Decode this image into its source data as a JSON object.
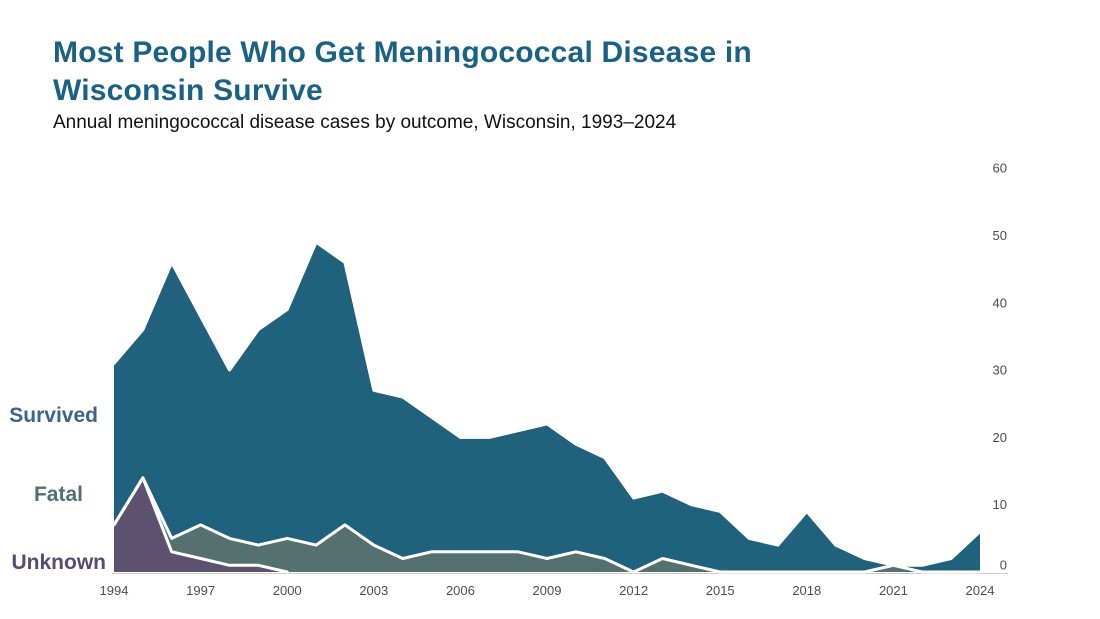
{
  "header": {
    "title": "Most People Who Get Meningococcal Disease in Wisconsin Survive",
    "subtitle": "Annual meningococcal disease cases by outcome, Wisconsin, 1993–2024",
    "title_color": "#1a6285"
  },
  "series_labels": [
    {
      "label": "Survived",
      "color": "#39648c"
    },
    {
      "label": "Fatal",
      "color": "#4e7173"
    },
    {
      "label": "Unknown",
      "color": "#5a4a72"
    }
  ],
  "chart_data": {
    "type": "area",
    "stacked": true,
    "title": "Most People Who Get Meningococcal Disease in Wisconsin Survive",
    "subtitle": "Annual meningococcal disease cases by outcome, Wisconsin, 1993–2024",
    "xlabel": "",
    "ylabel": "",
    "x": [
      1994,
      1995,
      1996,
      1997,
      1998,
      1999,
      2000,
      2001,
      2002,
      2003,
      2004,
      2005,
      2006,
      2007,
      2008,
      2009,
      2010,
      2011,
      2012,
      2013,
      2014,
      2015,
      2016,
      2017,
      2018,
      2019,
      2020,
      2021,
      2022,
      2023,
      2024
    ],
    "series": [
      {
        "name": "Unknown",
        "color": "#5d5170",
        "values": [
          7,
          14,
          3,
          2,
          1,
          1,
          0,
          0,
          0,
          0,
          0,
          0,
          0,
          0,
          0,
          0,
          0,
          0,
          0,
          0,
          0,
          0,
          0,
          0,
          0,
          0,
          0,
          0,
          0,
          0,
          0
        ]
      },
      {
        "name": "Fatal",
        "color": "#547170",
        "values": [
          0,
          0,
          2,
          5,
          4,
          3,
          5,
          4,
          7,
          4,
          2,
          3,
          3,
          3,
          3,
          2,
          3,
          2,
          0,
          2,
          1,
          0,
          0,
          0,
          0,
          0,
          0,
          1,
          0,
          0,
          0
        ]
      },
      {
        "name": "Survived",
        "color": "#20617e",
        "values": [
          24,
          22,
          41,
          31,
          25,
          32,
          34,
          45,
          39,
          23,
          24,
          20,
          17,
          17,
          18,
          20,
          16,
          15,
          11,
          10,
          9,
          9,
          5,
          4,
          9,
          4,
          2,
          0,
          1,
          2,
          6
        ]
      }
    ],
    "outline_color": "#ffffff",
    "x_ticks": [
      1994,
      1997,
      2000,
      2003,
      2006,
      2009,
      2012,
      2015,
      2018,
      2021,
      2024
    ],
    "y_ticks": [
      0,
      10,
      20,
      30,
      40,
      50,
      60
    ],
    "ylim": [
      0,
      60
    ],
    "y_axis_position": "right",
    "grid": false,
    "axis_line_color": "#cccccc",
    "legend_position": "direct-labels-left"
  }
}
